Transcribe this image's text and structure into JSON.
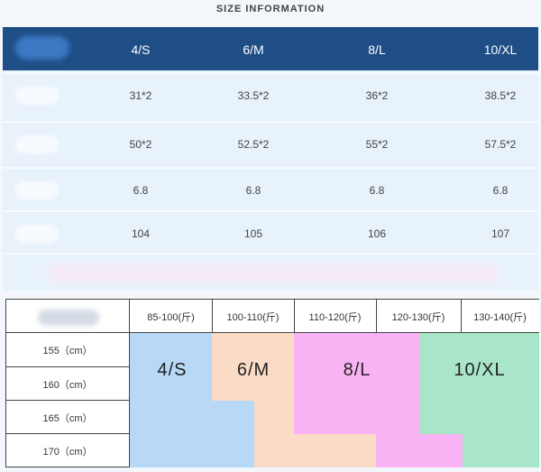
{
  "title": "SIZE INFORMATION",
  "top_table": {
    "headers": [
      "4/S",
      "6/M",
      "8/L",
      "10/XL"
    ],
    "rows": [
      [
        "31*2",
        "33.5*2",
        "36*2",
        "38.5*2"
      ],
      [
        "50*2",
        "52.5*2",
        "55*2",
        "57.5*2"
      ],
      [
        "6.8",
        "6.8",
        "6.8",
        "6.8"
      ],
      [
        "104",
        "105",
        "106",
        "107"
      ]
    ]
  },
  "chart": {
    "weights": [
      "85-100(斤)",
      "100-110(斤)",
      "110-120(斤)",
      "120-130(斤)",
      "130-140(斤)"
    ],
    "heights": [
      "155（cm）",
      "160（cm）",
      "165（cm）",
      "170（cm）"
    ],
    "sizes": [
      "4/S",
      "6/M",
      "8/L",
      "10/XL"
    ],
    "colors": {
      "s": "#b7d9f5",
      "m": "#fadbc6",
      "l": "#f9b2f4",
      "xl": "#a9e5c8"
    }
  }
}
